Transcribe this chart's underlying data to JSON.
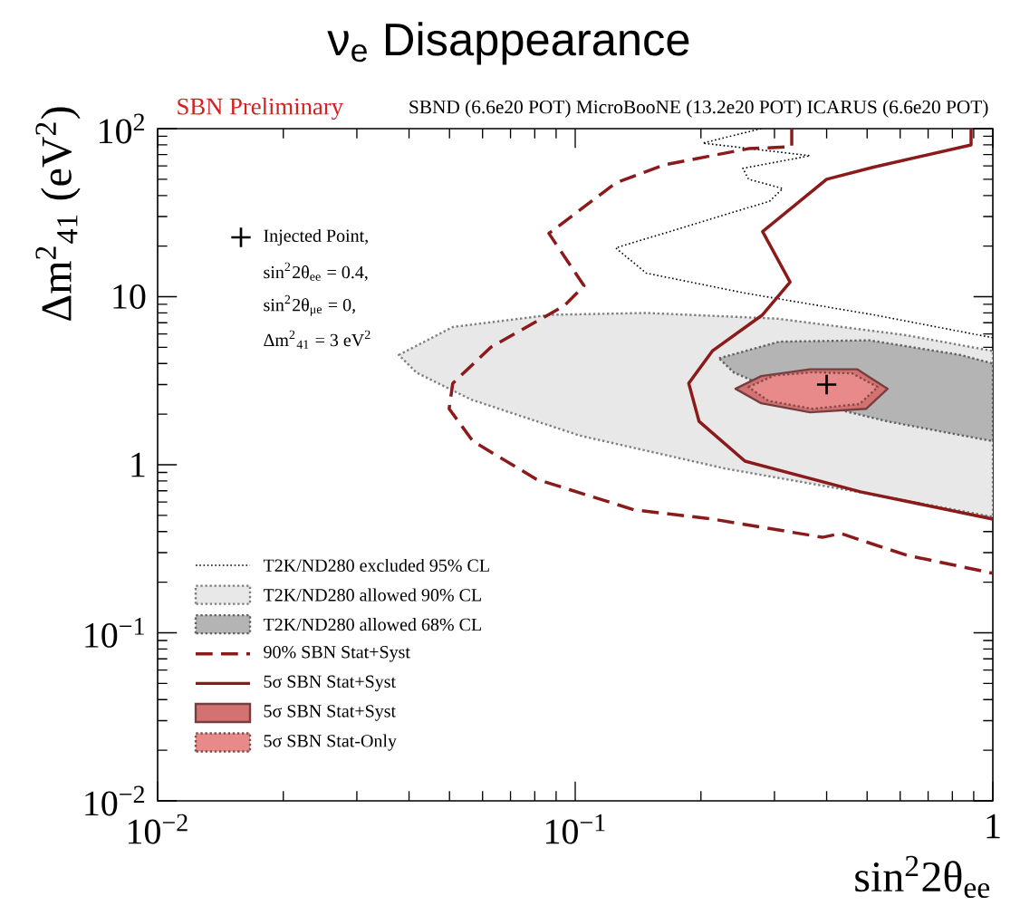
{
  "chart_data": {
    "type": "line",
    "title": "ν$_{e}$ Disappearance",
    "xlabel": "sin$^{2}$2θ$_{ee}$",
    "ylabel": "Δm$^{2}$$_{41}$ (eV$^{2}$)",
    "log": "xy",
    "xlim": [
      0.01,
      1
    ],
    "ylim": [
      0.01,
      100
    ],
    "xticks": [
      {
        "value": 0.01,
        "label": "10$^{−2}$"
      },
      {
        "value": 0.1,
        "label": "10$^{−1}$"
      },
      1
    ],
    "yticks": [
      {
        "value": 0.01,
        "label": "10$^{−2}$"
      },
      {
        "value": 0.1,
        "label": "10$^{−1}$"
      },
      1,
      10,
      {
        "value": 100,
        "label": "10$^{2}$"
      }
    ],
    "legend": "left",
    "annotations": [
      "SBN Preliminary",
      "SBND (6.6e20 POT) MicroBooNE (13.2e20 POT) ICARUS (6.6e20 POT)",
      "sin$^{2}$2θ$_{ee}$ = 0.4,",
      "sin$^{2}$2θ$_{μe}$ = 0,",
      "Δm$^{2}$$_{41}$ = 3 eV$^{2}$"
    ],
    "series": [
      {
        "name": "T2K/ND280 excluded 95% CL",
        "line_style": "dotted",
        "color": "#000000",
        "x": [
          0.279,
          0.202,
          0.365,
          0.252,
          0.26,
          0.314,
          0.292,
          0.125,
          0.148,
          0.255,
          0.518,
          1
        ],
        "values": [
          100,
          82,
          69,
          58,
          50,
          44,
          37,
          19.5,
          13.8,
          10.5,
          7.8,
          5.7
        ]
      },
      {
        "name": "T2K/ND280 allowed 90% CL",
        "type": "area",
        "line_style": "dotted",
        "color": "#e8e8e8",
        "x": [
          0.0378,
          0.0509,
          0.0873,
          0.148,
          0.305,
          0.62,
          1,
          1,
          0.507,
          0.228,
          0.1026,
          0.0564,
          0.0417
        ],
        "values": [
          4.5,
          6.6,
          7.8,
          8.0,
          7.4,
          5.9,
          4.75,
          0.49,
          0.67,
          0.95,
          1.49,
          2.44,
          3.53
        ]
      },
      {
        "name": "T2K/ND280 allowed 68% CL",
        "type": "area",
        "line_style": "dotted",
        "color": "#b4b4b4",
        "x": [
          0.221,
          0.308,
          0.507,
          0.836,
          1,
          1,
          0.56,
          0.34,
          0.24
        ],
        "values": [
          4.3,
          5.4,
          5.5,
          4.5,
          4.0,
          1.38,
          1.81,
          2.44,
          3.53
        ]
      },
      {
        "name": "90% SBN Stat+Syst",
        "line_style": "dashed",
        "color": "#8b1a1a",
        "x": [
          0.33,
          0.33,
          0.26,
          0.164,
          0.125,
          0.0865,
          0.105,
          0.094,
          0.0628,
          0.0509,
          0.0499,
          0.0569,
          0.0807,
          0.138,
          0.213,
          0.391,
          0.432,
          0.62,
          1
        ],
        "values": [
          100,
          78,
          76,
          61,
          47.5,
          23.8,
          11.6,
          8.8,
          5.0,
          3.05,
          2.15,
          1.38,
          0.82,
          0.54,
          0.475,
          0.37,
          0.39,
          0.29,
          0.226
        ]
      },
      {
        "name": "5σ SBN Stat+Syst",
        "line_style": "solid",
        "color": "#8b1a1a",
        "x": [
          0.887,
          0.887,
          0.518,
          0.4,
          0.281,
          0.327,
          0.281,
          0.213,
          0.187,
          0.198,
          0.255,
          0.482,
          1
        ],
        "values": [
          100,
          80,
          59,
          50,
          24.4,
          12.2,
          7.8,
          4.75,
          3.05,
          1.81,
          1.05,
          0.69,
          0.475
        ]
      },
      {
        "name": "5σ SBN Stat+Syst",
        "type": "area",
        "line_style": "solid",
        "color": "#d47272",
        "x": [
          0.242,
          0.279,
          0.365,
          0.473,
          0.56,
          0.497,
          0.365,
          0.279
        ],
        "values": [
          2.83,
          3.37,
          3.7,
          3.7,
          2.83,
          2.15,
          2.05,
          2.32
        ]
      },
      {
        "name": "5σ SBN Stat-Only",
        "type": "area",
        "line_style": "dotted",
        "color": "#e88a8a",
        "x": [
          0.26,
          0.3,
          0.37,
          0.46,
          0.53,
          0.48,
          0.37,
          0.29
        ],
        "values": [
          2.9,
          3.4,
          3.55,
          3.5,
          2.9,
          2.3,
          2.15,
          2.4
        ]
      },
      {
        "name": "Injected Point,",
        "type": "scatter",
        "marker": "cross",
        "color": "#000000",
        "x": [
          0.4
        ],
        "values": [
          3
        ]
      }
    ]
  }
}
